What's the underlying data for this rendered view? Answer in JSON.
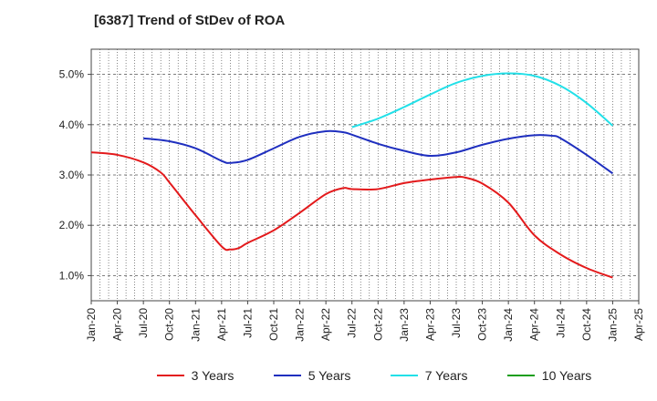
{
  "chart_data": {
    "type": "line",
    "title": "[6387]  Trend of StDev of ROA",
    "xlabel": "",
    "ylabel": "",
    "x_ticks": [
      "Jan-20",
      "Apr-20",
      "Jul-20",
      "Oct-20",
      "Jan-21",
      "Apr-21",
      "Jul-21",
      "Oct-21",
      "Jan-22",
      "Apr-22",
      "Jul-22",
      "Oct-22",
      "Jan-23",
      "Apr-23",
      "Jul-23",
      "Oct-23",
      "Jan-24",
      "Apr-24",
      "Jul-24",
      "Oct-24",
      "Jan-25",
      "Apr-25"
    ],
    "y_ticks": [
      "1.0%",
      "2.0%",
      "3.0%",
      "4.0%",
      "5.0%"
    ],
    "ylim": [
      0.5,
      5.5
    ],
    "grid": "on",
    "legend_position": "bottom",
    "series": [
      {
        "name": "3 Years",
        "color": "#e31a1c",
        "x": [
          "Jan-20",
          "Apr-20",
          "Jul-20",
          "Sep-20",
          "Oct-20",
          "Jan-21",
          "Apr-21",
          "May-21",
          "Jun-21",
          "Jul-21",
          "Oct-21",
          "Jan-22",
          "Apr-22",
          "Jun-22",
          "Jul-22",
          "Oct-22",
          "Jan-23",
          "Apr-23",
          "Jul-23",
          "Aug-23",
          "Oct-23",
          "Jan-24",
          "Apr-24",
          "Jul-24",
          "Oct-24",
          "Jan-25"
        ],
        "values": [
          3.45,
          3.4,
          3.25,
          3.05,
          2.85,
          2.2,
          1.58,
          1.52,
          1.55,
          1.65,
          1.9,
          2.25,
          2.62,
          2.74,
          2.72,
          2.72,
          2.84,
          2.91,
          2.96,
          2.95,
          2.83,
          2.45,
          1.8,
          1.42,
          1.15,
          0.96
        ]
      },
      {
        "name": "5 Years",
        "color": "#1f2fbf",
        "x": [
          "Jul-20",
          "Oct-20",
          "Jan-21",
          "Apr-21",
          "May-21",
          "Jul-21",
          "Oct-21",
          "Jan-22",
          "Apr-22",
          "Jun-22",
          "Jul-22",
          "Oct-22",
          "Jan-23",
          "Apr-23",
          "Jul-23",
          "Oct-23",
          "Jan-24",
          "Apr-24",
          "Jun-24",
          "Jul-24",
          "Oct-24",
          "Jan-25"
        ],
        "values": [
          3.73,
          3.67,
          3.53,
          3.28,
          3.24,
          3.3,
          3.53,
          3.76,
          3.87,
          3.85,
          3.8,
          3.62,
          3.48,
          3.38,
          3.45,
          3.6,
          3.72,
          3.79,
          3.78,
          3.73,
          3.4,
          3.03
        ]
      },
      {
        "name": "7 Years",
        "color": "#22e0e8",
        "x": [
          "Jul-22",
          "Oct-22",
          "Jan-23",
          "Apr-23",
          "Jul-23",
          "Oct-23",
          "Jan-24",
          "Apr-24",
          "Jul-24",
          "Oct-24",
          "Jan-25"
        ],
        "values": [
          3.95,
          4.12,
          4.35,
          4.6,
          4.83,
          4.97,
          5.02,
          4.97,
          4.77,
          4.43,
          3.98
        ]
      },
      {
        "name": "10 Years",
        "color": "#1a9e1a",
        "x": [],
        "values": []
      }
    ]
  }
}
